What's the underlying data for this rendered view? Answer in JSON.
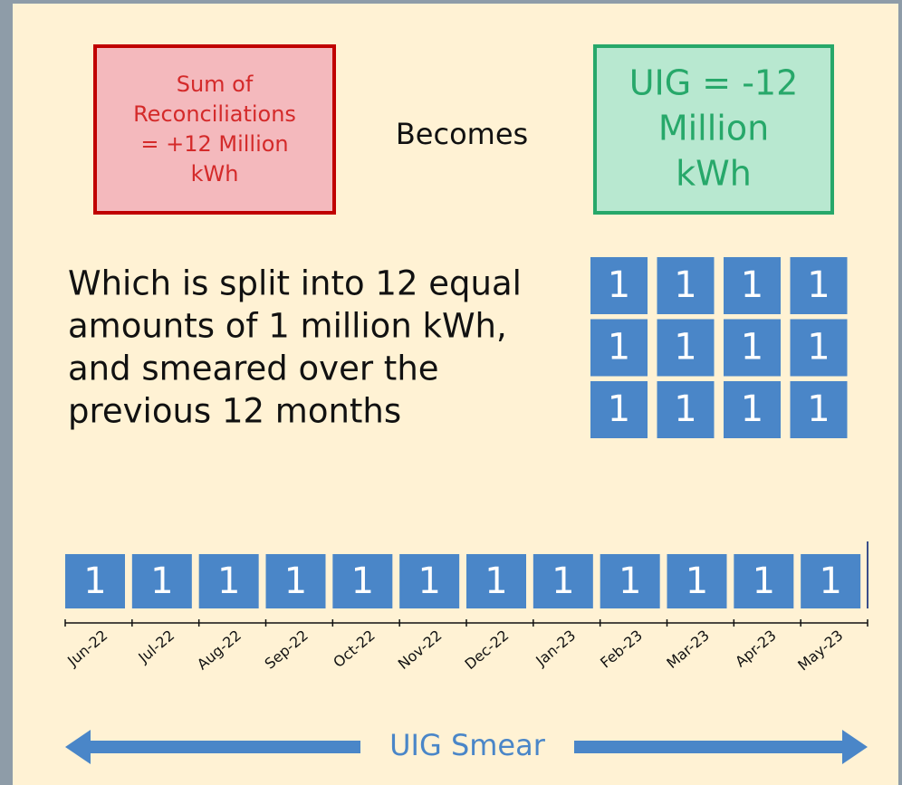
{
  "summary_box": {
    "lines": [
      "Sum of",
      "Reconciliations",
      "= +12 Million",
      "kWh"
    ]
  },
  "connector": "Becomes",
  "result_box": {
    "lines": [
      "UIG = -12",
      "Million",
      "kWh"
    ]
  },
  "description": {
    "lines": [
      "Which is split into 12 equal",
      "amounts of 1 million kWh,",
      "and smeared over the",
      "previous 12 months"
    ]
  },
  "grid": {
    "values": [
      1,
      1,
      1,
      1,
      1,
      1,
      1,
      1,
      1,
      1,
      1,
      1
    ]
  },
  "timeline": {
    "months": [
      "Jun-22",
      "Jul-22",
      "Aug-22",
      "Sep-22",
      "Oct-22",
      "Nov-22",
      "Dec-22",
      "Jan-23",
      "Feb-23",
      "Mar-23",
      "Apr-23",
      "May-23"
    ],
    "values": [
      1,
      1,
      1,
      1,
      1,
      1,
      1,
      1,
      1,
      1,
      1,
      1
    ]
  },
  "arrow_label": "UIG Smear"
}
